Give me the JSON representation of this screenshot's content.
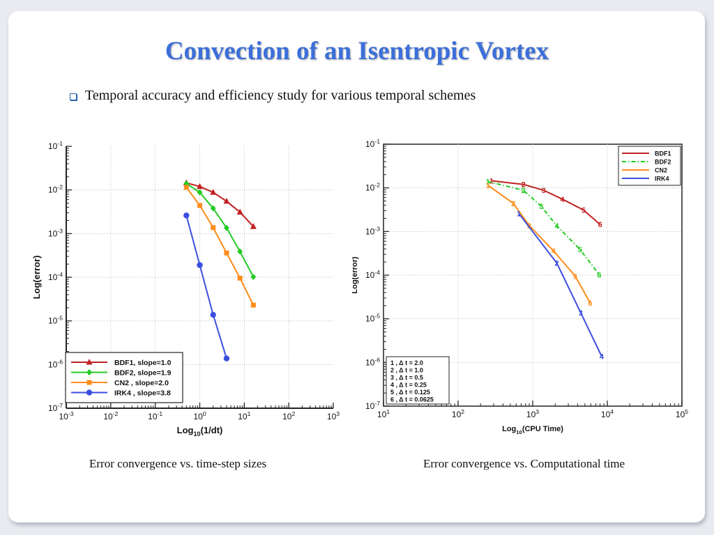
{
  "slide": {
    "title": "Convection of an Isentropic Vortex",
    "bullet": "Temporal accuracy and efficiency study for various temporal schemes",
    "caption_left": "Error convergence vs. time-step sizes",
    "caption_right": "Error convergence vs. Computational time"
  },
  "colors": {
    "title": "#3c6fd9",
    "BDF1": "#c02020",
    "BDF2": "#22cc22",
    "CN2": "#ff8c1a",
    "IRK4": "#3a4ee0"
  },
  "chart_data": [
    {
      "type": "line",
      "xscale": "log",
      "yscale": "log",
      "xlim_exp": [
        -3,
        3
      ],
      "ylim_exp": [
        -7,
        -1
      ],
      "xlabel": "Log10(1/dt)",
      "ylabel": "Log(error)",
      "grid": true,
      "legend_position": "bottom-left",
      "series": [
        {
          "name": "BDF1, slope=1.0",
          "marker": "triangle",
          "x": [
            0.5,
            1,
            2,
            4,
            8,
            16
          ],
          "y": [
            0.0145,
            0.012,
            0.0088,
            0.0055,
            0.0031,
            0.00145
          ]
        },
        {
          "name": "BDF2, slope=1.9",
          "marker": "diamond",
          "x": [
            0.5,
            1,
            2,
            4,
            8,
            16
          ],
          "y": [
            0.014,
            0.0088,
            0.0038,
            0.00135,
            0.00039,
            0.000102
          ]
        },
        {
          "name": "CN2 , slope=2.0",
          "marker": "square",
          "x": [
            0.5,
            1,
            2,
            4,
            8,
            16
          ],
          "y": [
            0.0115,
            0.0044,
            0.00137,
            0.00036,
            9.55e-05,
            2.3e-05
          ]
        },
        {
          "name": "IRK4 , slope=3.8",
          "marker": "circle",
          "x": [
            0.5,
            1,
            2,
            4
          ],
          "y": [
            0.0026,
            0.00019,
            1.38e-05,
            1.38e-06
          ]
        }
      ]
    },
    {
      "type": "line",
      "xscale": "log",
      "yscale": "log",
      "xlim_exp": [
        1,
        5
      ],
      "ylim_exp": [
        -7,
        -1
      ],
      "xlabel": "Log10(CPU Time)",
      "ylabel": "Log(error)",
      "grid": true,
      "legend_position": "top-right",
      "series": [
        {
          "name": "BDF1",
          "dash": "solid",
          "point_labels": [
            "1",
            "2",
            "3",
            "4",
            "5",
            "6"
          ],
          "x": [
            280,
            750,
            1400,
            2500,
            4800,
            8000
          ],
          "y": [
            0.0145,
            0.012,
            0.0088,
            0.0055,
            0.0031,
            0.00145
          ]
        },
        {
          "name": "BDF2",
          "dash": "dashdot",
          "point_labels": [
            "1",
            "2",
            "3",
            "4",
            "5",
            "6"
          ],
          "x": [
            250,
            750,
            1300,
            2100,
            4300,
            7800
          ],
          "y": [
            0.014,
            0.0088,
            0.0038,
            0.00135,
            0.00039,
            0.000102
          ]
        },
        {
          "name": "CN2",
          "dash": "solid",
          "point_labels": [
            "1",
            "2",
            "3",
            "4",
            "5",
            "6"
          ],
          "x": [
            250,
            550,
            900,
            1900,
            3700,
            5900
          ],
          "y": [
            0.0115,
            0.0044,
            0.00137,
            0.00036,
            9.55e-05,
            2.3e-05
          ]
        },
        {
          "name": "IRK4",
          "dash": "solid",
          "point_labels": [
            "1",
            "2",
            "3",
            "4"
          ],
          "x": [
            650,
            2100,
            4400,
            8400
          ],
          "y": [
            0.0026,
            0.00019,
            1.38e-05,
            1.38e-06
          ]
        }
      ],
      "legend_dt": [
        {
          "label": "1",
          "dt": "2.0"
        },
        {
          "label": "2",
          "dt": "1.0"
        },
        {
          "label": "3",
          "dt": "0.5"
        },
        {
          "label": "4",
          "dt": "0.25"
        },
        {
          "label": "5",
          "dt": "0.125"
        },
        {
          "label": "6",
          "dt": "0.0625"
        }
      ],
      "dt_symbol": "Δ t"
    }
  ]
}
